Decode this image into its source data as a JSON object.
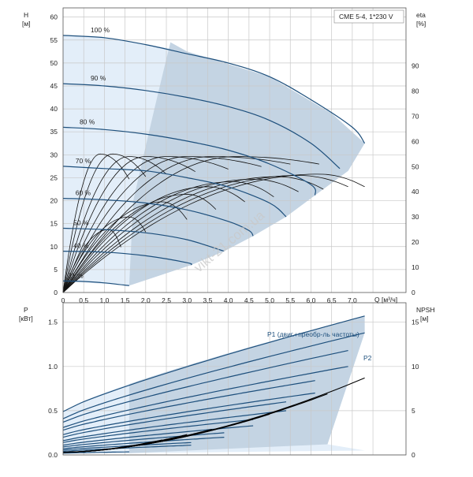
{
  "colors": {
    "region_light": "#e3eef9",
    "region_dark": "#c4d4e3",
    "curve_blue": "#1d4f7c",
    "curve_black": "#111111"
  },
  "watermark": "vikt-21.com.ua",
  "chart_data": [
    {
      "type": "line",
      "title": "CME 5-4, 1*230 V",
      "x": {
        "label": "Q [м³/ч]",
        "ticks": [
          "0",
          "0,5",
          "1,0",
          "1,5",
          "2,0",
          "2,5",
          "3,0",
          "3,5",
          "4,0",
          "4,5",
          "5,0",
          "5,5",
          "6,0",
          "6,5",
          "7,0"
        ],
        "range": [
          0,
          8.3
        ]
      },
      "y_left": {
        "label_top": "H",
        "label_unit": "[м]",
        "ticks": [
          "0",
          "5",
          "10",
          "15",
          "20",
          "25",
          "30",
          "35",
          "40",
          "45",
          "50",
          "55",
          "60"
        ],
        "range": [
          0,
          62
        ]
      },
      "y_right": {
        "label_top": "eta",
        "label_unit": "[%]",
        "ticks": [
          "0",
          "10",
          "20",
          "30",
          "40",
          "50",
          "60",
          "70",
          "80",
          "90"
        ],
        "range": [
          0,
          113
        ]
      },
      "grid": true,
      "speed_labels": [
        "100 %",
        "90 %",
        "80 %",
        "70 %",
        "60 %",
        "50 %",
        "40 %",
        "21 %"
      ],
      "head_curves": [
        {
          "label": "100 %",
          "points": [
            [
              0,
              56
            ],
            [
              1,
              55.5
            ],
            [
              2,
              54
            ],
            [
              3,
              52
            ],
            [
              4,
              50
            ],
            [
              5,
              47
            ],
            [
              6,
              42
            ],
            [
              7,
              36
            ],
            [
              7.3,
              32.5
            ]
          ]
        },
        {
          "label": "90 %",
          "points": [
            [
              0,
              45.5
            ],
            [
              1,
              45
            ],
            [
              2,
              44
            ],
            [
              3,
              42.5
            ],
            [
              4,
              40.5
            ],
            [
              5,
              37.5
            ],
            [
              6,
              32.5
            ],
            [
              6.7,
              27
            ]
          ]
        },
        {
          "label": "80 %",
          "points": [
            [
              0,
              36
            ],
            [
              1,
              35.5
            ],
            [
              2,
              34.5
            ],
            [
              3,
              33
            ],
            [
              4,
              31
            ],
            [
              5,
              28
            ],
            [
              6,
              23.5
            ],
            [
              6.1,
              21.2
            ]
          ]
        },
        {
          "label": "70 %",
          "points": [
            [
              0,
              27.5
            ],
            [
              1,
              27
            ],
            [
              2,
              26.5
            ],
            [
              3,
              25
            ],
            [
              4,
              23
            ],
            [
              5,
              19.5
            ],
            [
              5.4,
              16.5
            ]
          ]
        },
        {
          "label": "60 %",
          "points": [
            [
              0,
              20.5
            ],
            [
              1,
              20.2
            ],
            [
              2,
              19.5
            ],
            [
              3,
              18
            ],
            [
              4,
              15.5
            ],
            [
              4.5,
              13.5
            ],
            [
              4.6,
              12.3
            ]
          ]
        },
        {
          "label": "50 %",
          "points": [
            [
              0,
              14
            ],
            [
              1,
              13.7
            ],
            [
              2,
              13
            ],
            [
              3,
              11.5
            ],
            [
              3.9,
              9
            ]
          ]
        },
        {
          "label": "40 %",
          "points": [
            [
              0,
              9
            ],
            [
              1,
              8.8
            ],
            [
              2,
              8
            ],
            [
              3,
              6.5
            ],
            [
              3.1,
              6
            ]
          ]
        },
        {
          "label": "21 %",
          "points": [
            [
              0,
              2.5
            ],
            [
              0.5,
              2.4
            ],
            [
              1,
              2.1
            ],
            [
              1.6,
              1.5
            ]
          ]
        }
      ],
      "operating_region": [
        [
          0,
          56
        ],
        [
          1.25,
          55.3
        ],
        [
          3,
          52.5
        ],
        [
          5,
          47
        ],
        [
          6.5,
          39
        ],
        [
          7.3,
          32.5
        ],
        [
          6.9,
          26.5
        ],
        [
          6.1,
          21.2
        ],
        [
          5.4,
          16.5
        ],
        [
          4.6,
          12.3
        ],
        [
          3.9,
          9
        ],
        [
          3.1,
          6
        ],
        [
          1.6,
          1.5
        ],
        [
          0,
          2.5
        ]
      ],
      "efficiency_curves_pct": [
        {
          "peak_x": 6.2,
          "peak": 47,
          "end_x": 7.3,
          "end": 42
        },
        {
          "peak_x": 5.7,
          "peak": 46.5,
          "end_x": 6.9,
          "end": 42
        },
        {
          "peak_x": 5.2,
          "peak": 46,
          "end_x": 6.3,
          "end": 41
        },
        {
          "peak_x": 4.6,
          "peak": 45,
          "end_x": 5.7,
          "end": 40
        },
        {
          "peak_x": 4.1,
          "peak": 44,
          "end_x": 5.1,
          "end": 38
        },
        {
          "peak_x": 3.5,
          "peak": 42,
          "end_x": 4.4,
          "end": 36
        },
        {
          "peak_x": 3.0,
          "peak": 39,
          "end_x": 3.7,
          "end": 33
        },
        {
          "peak_x": 2.4,
          "peak": 36,
          "end_x": 3.0,
          "end": 29
        },
        {
          "peak_x": 1.6,
          "peak": 30,
          "end_x": 2.0,
          "end": 24
        },
        {
          "peak_x": 1.1,
          "peak": 25,
          "end_x": 1.4,
          "end": 18
        },
        {
          "peak_x": 0.9,
          "peak": 55,
          "end_x": 1.6,
          "end": 45
        },
        {
          "peak_x": 1.2,
          "peak": 55,
          "end_x": 2.0,
          "end": 46
        },
        {
          "peak_x": 1.6,
          "peak": 54,
          "end_x": 2.5,
          "end": 47
        },
        {
          "peak_x": 2.0,
          "peak": 54,
          "end_x": 3.2,
          "end": 48
        },
        {
          "peak_x": 2.5,
          "peak": 54,
          "end_x": 4.0,
          "end": 49
        },
        {
          "peak_x": 3.0,
          "peak": 54,
          "end_x": 4.8,
          "end": 50
        },
        {
          "peak_x": 3.6,
          "peak": 54,
          "end_x": 5.5,
          "end": 51
        },
        {
          "peak_x": 4.2,
          "peak": 54,
          "end_x": 6.2,
          "end": 51
        }
      ]
    },
    {
      "type": "line",
      "x": {
        "range": [
          0,
          8.3
        ]
      },
      "y_left": {
        "label_top": "P",
        "label_unit": "[кВт]",
        "ticks": [
          "0.0",
          "0.5",
          "1.0",
          "1.5"
        ],
        "range": [
          0,
          1.72
        ]
      },
      "y_right": {
        "label_top": "NPSH",
        "label_unit": "[м]",
        "ticks": [
          "0",
          "5",
          "10",
          "15"
        ],
        "range": [
          0,
          17.2
        ]
      },
      "grid": true,
      "series_labels": [
        "P1 (двиг.+преобр-ль частоты)",
        "P2"
      ],
      "p1_curves": [
        {
          "end_x": 7.3,
          "start": 0.49,
          "end": 1.57
        },
        {
          "end_x": 6.9,
          "start": 0.37,
          "end": 1.18
        },
        {
          "end_x": 6.1,
          "start": 0.28,
          "end": 0.84
        },
        {
          "end_x": 5.4,
          "start": 0.2,
          "end": 0.6
        },
        {
          "end_x": 4.6,
          "start": 0.14,
          "end": 0.4
        },
        {
          "end_x": 3.9,
          "start": 0.09,
          "end": 0.25
        },
        {
          "end_x": 3.1,
          "start": 0.055,
          "end": 0.14
        },
        {
          "end_x": 1.6,
          "start": 0.02,
          "end": 0.035
        }
      ],
      "p2_curves": [
        {
          "end_x": 7.3,
          "start": 0.41,
          "end": 1.38
        },
        {
          "end_x": 6.9,
          "start": 0.31,
          "end": 1.0
        },
        {
          "end_x": 6.1,
          "start": 0.23,
          "end": 0.7
        },
        {
          "end_x": 5.4,
          "start": 0.16,
          "end": 0.5
        },
        {
          "end_x": 4.6,
          "start": 0.11,
          "end": 0.33
        },
        {
          "end_x": 3.9,
          "start": 0.07,
          "end": 0.2
        },
        {
          "end_x": 3.1,
          "start": 0.04,
          "end": 0.11
        }
      ],
      "npsh_curves": [
        {
          "end_x": 7.3,
          "start": 0.3,
          "end": 8.7
        },
        {
          "end_x": 6.4,
          "start": 0.3,
          "end": 6.9
        },
        {
          "end_x": 5.6,
          "start": 0.3,
          "end": 5.6
        },
        {
          "end_x": 5.0,
          "start": 0.3,
          "end": 4.6
        },
        {
          "end_x": 4.4,
          "start": 0.3,
          "end": 3.8
        },
        {
          "end_x": 3.6,
          "start": 0.3,
          "end": 2.9
        },
        {
          "end_x": 3.0,
          "start": 0.3,
          "end": 2.3
        },
        {
          "end_x": 2.4,
          "start": 0.3,
          "end": 1.7
        }
      ]
    }
  ]
}
